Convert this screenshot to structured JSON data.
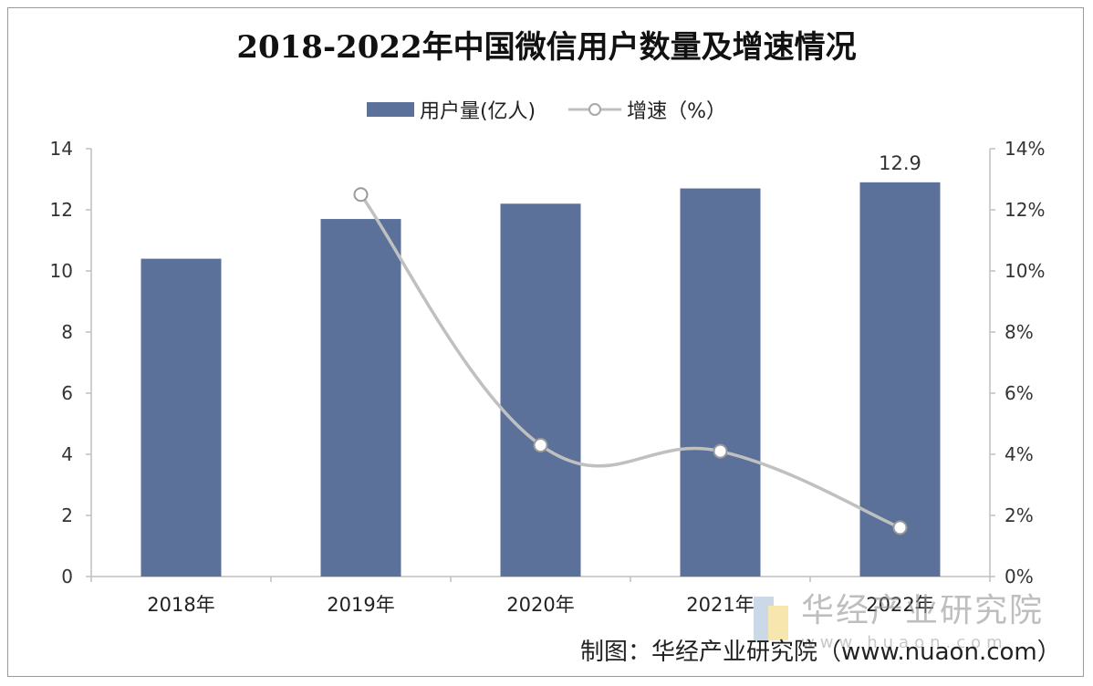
{
  "chart_data": {
    "type": "bar",
    "title": "2018-2022年中国微信用户数量及增速情况",
    "categories": [
      "2018年",
      "2019年",
      "2020年",
      "2021年",
      "2022年"
    ],
    "series": [
      {
        "name": "用户量(亿人)",
        "type": "bar",
        "axis": "left",
        "color": "#5b7199",
        "values": [
          10.4,
          11.7,
          12.2,
          12.7,
          12.9
        ]
      },
      {
        "name": "增速（%）",
        "type": "line",
        "axis": "right",
        "color": "#c0c0c0",
        "values": [
          null,
          12.5,
          4.3,
          4.1,
          1.6
        ]
      }
    ],
    "data_labels": [
      {
        "category": "2022年",
        "text": "12.9"
      }
    ],
    "y_left": {
      "min": 0,
      "max": 14,
      "step": 2,
      "ticks": [
        "0",
        "2",
        "4",
        "6",
        "8",
        "10",
        "12",
        "14"
      ]
    },
    "y_right": {
      "min": 0,
      "max": 14,
      "step": 2,
      "ticks": [
        "0%",
        "2%",
        "4%",
        "6%",
        "8%",
        "10%",
        "12%",
        "14%"
      ]
    },
    "grid": false,
    "legend_position": "top"
  },
  "watermark": {
    "name": "华经产业研究院",
    "url": "www.huaon.com"
  },
  "source": "制图：华经产业研究院（www.nuaon.com）"
}
